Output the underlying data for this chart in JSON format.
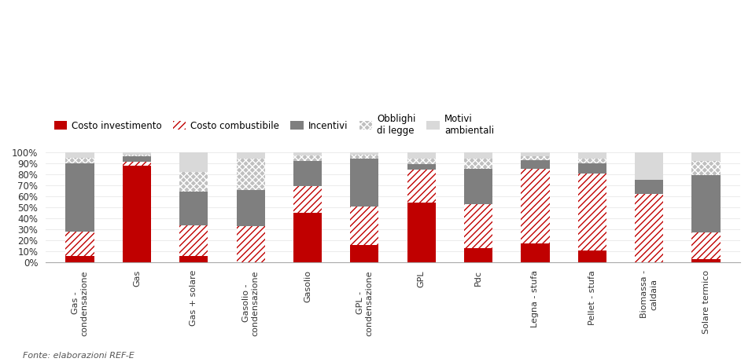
{
  "categories": [
    "Gas -\ncondensazione",
    "Gas",
    "Gas + solare",
    "Gasolio -\ncondensazione",
    "Gasolio",
    "GPL -\ncondensazione",
    "GPL",
    "Pdc",
    "Legna - stufa",
    "Pellet - stufa",
    "Biomassa -\ncaldaia",
    "Solare termico"
  ],
  "costo_investimento": [
    6,
    88,
    6,
    0,
    45,
    16,
    54,
    13,
    17,
    11,
    0,
    3
  ],
  "costo_combustibile": [
    22,
    3,
    28,
    33,
    24,
    35,
    30,
    40,
    68,
    70,
    62,
    24
  ],
  "incentivi": [
    62,
    5,
    30,
    33,
    23,
    43,
    5,
    32,
    8,
    9,
    13,
    52
  ],
  "obblighi_di_legge": [
    5,
    2,
    18,
    28,
    5,
    4,
    5,
    9,
    3,
    4,
    0,
    13
  ],
  "motivi_ambientali": [
    5,
    2,
    18,
    6,
    3,
    2,
    6,
    6,
    4,
    6,
    25,
    8
  ],
  "color_investimento": "#c00000",
  "color_combustibile_bg": "#ffffff",
  "color_combustibile_hatch": "#c00000",
  "color_incentivi": "#7f7f7f",
  "color_obblighi_bg": "#bfbfbf",
  "color_ambientali": "#d9d9d9",
  "legend_labels": [
    "Costo investimento",
    "Costo combustibile",
    "Incentivi",
    "Obblighi\ndi legge",
    "Motivi\nambientali"
  ],
  "source_text": "Fonte: elaborazioni REF-E",
  "background_color": "#ffffff"
}
